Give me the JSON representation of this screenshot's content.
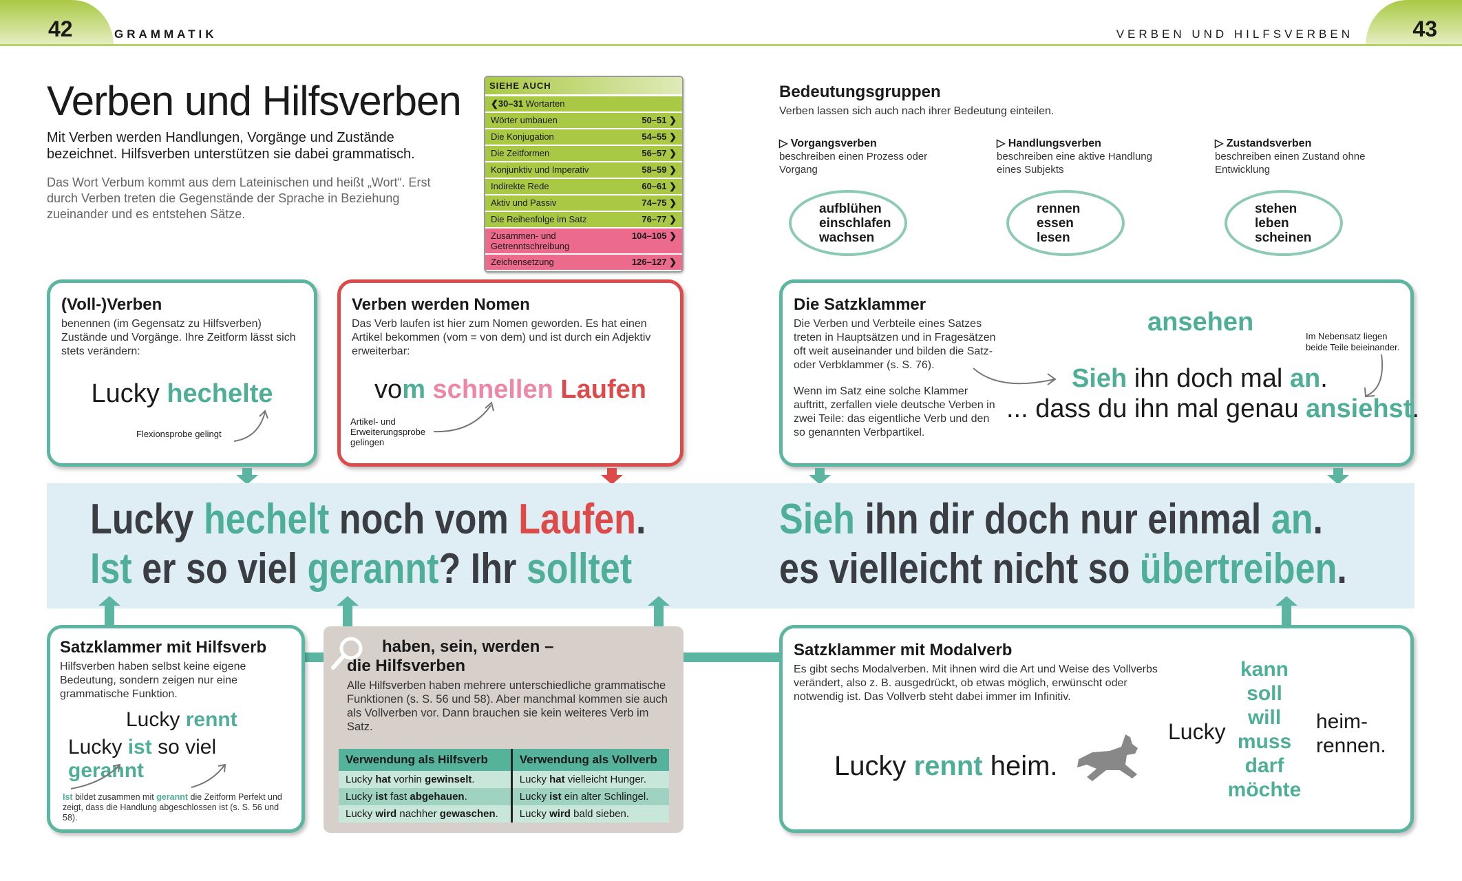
{
  "header": {
    "left_page": "42",
    "left_section": "GRAMMATIK",
    "right_section": "VERBEN UND HILFSVERBEN",
    "right_page": "43"
  },
  "intro": {
    "title": "Verben und Hilfsverben",
    "lead": "Mit Verben werden Handlungen, Vorgänge und Zustände bezeichnet. Hilfsverben unterstützen sie dabei grammatisch.",
    "note": "Das Wort Verbum kommt aus dem Lateinischen und heißt „Wort“. Erst durch Verben treten die Gegenstände der Sprache in Beziehung zueinander und es entstehen Sätze."
  },
  "see_also": {
    "heading": "SIEHE AUCH",
    "back": {
      "pages": "❮30–31",
      "label": "Wortarten"
    },
    "items": [
      {
        "label": "Wörter umbauen",
        "pages": "50–51 ❯",
        "pink": false
      },
      {
        "label": "Die Konjugation",
        "pages": "54–55 ❯",
        "pink": false
      },
      {
        "label": "Die Zeitformen",
        "pages": "56–57 ❯",
        "pink": false
      },
      {
        "label": "Konjunktiv und Imperativ",
        "pages": "58–59 ❯",
        "pink": false
      },
      {
        "label": "Indirekte Rede",
        "pages": "60–61 ❯",
        "pink": false
      },
      {
        "label": "Aktiv und Passiv",
        "pages": "74–75 ❯",
        "pink": false
      },
      {
        "label": "Die Reihenfolge im Satz",
        "pages": "76–77 ❯",
        "pink": false
      },
      {
        "label": "Zusammen- und Getrenntschreibung",
        "pages": "104–105 ❯",
        "pink": true
      },
      {
        "label": "Zeichensetzung",
        "pages": "126–127 ❯",
        "pink": true
      }
    ]
  },
  "meaning": {
    "title": "Bedeutungsgruppen",
    "subtitle": "Verben lassen sich auch nach ihrer Bedeutung einteilen.",
    "groups": [
      {
        "name": "▷ Vorgangsverben",
        "desc": "beschreiben einen Prozess oder Vorgang",
        "words": [
          "aufblühen",
          "einschlafen",
          "wachsen"
        ]
      },
      {
        "name": "▷ Handlungsverben",
        "desc": "beschreiben eine aktive Handlung eines Subjekts",
        "words": [
          "rennen",
          "essen",
          "lesen"
        ]
      },
      {
        "name": "▷ Zustandsverben",
        "desc": "beschreiben einen Zustand ohne Entwicklung",
        "words": [
          "stehen",
          "leben",
          "scheinen"
        ]
      }
    ]
  },
  "full_verbs": {
    "title": "(Voll-)Verben",
    "text": "benennen (im Gegensatz zu Hilfsverben) Zustände und Vorgänge. Ihre Zeitform lässt sich stets verändern:",
    "example": [
      {
        "t": "Lucky ",
        "c": ""
      },
      {
        "t": "hechelte",
        "c": "teal b"
      }
    ],
    "annotation": "Flexionsprobe gelingt"
  },
  "nominal": {
    "title": "Verben werden Nomen",
    "text": "Das Verb laufen ist hier zum Nomen geworden. Es hat einen Artikel bekommen (vom = von dem) und ist durch ein Adjektiv erweiterbar:",
    "example": [
      {
        "t": "vo",
        "c": ""
      },
      {
        "t": "m ",
        "c": "teal b"
      },
      {
        "t": "schnellen ",
        "c": "pink b"
      },
      {
        "t": "Laufen",
        "c": "red b"
      }
    ],
    "annotation": "Artikel- und Erweiterungsprobe gelingen"
  },
  "bracket": {
    "title": "Die Satzklammer",
    "text1": "Die Verben und Verbteile eines Satzes treten in Hauptsätzen und in Fragesätzen oft weit auseinander und bilden die Satz- oder Verbklammer (s. S. 76).",
    "text2": "Wenn im Satz eine solche Klammer auftritt, zerfallen viele deutsche Verben in zwei Teile: das eigentliche Verb und den so genannten Verbpartikel.",
    "infinitive": "ansehen",
    "note": "Im Nebensatz liegen beide Teile beieinander.",
    "line1": [
      {
        "t": "Sieh",
        "c": "teal b"
      },
      {
        "t": " ihn doch mal ",
        "c": ""
      },
      {
        "t": "an",
        "c": "teal b"
      },
      {
        "t": ".",
        "c": ""
      }
    ],
    "line2": [
      {
        "t": "... dass du ihn mal genau ",
        "c": ""
      },
      {
        "t": "ansiehst",
        "c": "teal b"
      },
      {
        "t": ".",
        "c": ""
      }
    ]
  },
  "band": {
    "left1": [
      {
        "t": "Lucky ",
        "c": "dark"
      },
      {
        "t": "hechelt",
        "c": "teal"
      },
      {
        "t": " noch vom ",
        "c": "dark"
      },
      {
        "t": "Laufen",
        "c": "red"
      },
      {
        "t": ".",
        "c": "dark"
      }
    ],
    "left2": [
      {
        "t": "Ist",
        "c": "teal"
      },
      {
        "t": " er so viel ",
        "c": "dark"
      },
      {
        "t": "gerannt",
        "c": "teal"
      },
      {
        "t": "? Ihr ",
        "c": "dark"
      },
      {
        "t": "solltet",
        "c": "teal"
      }
    ],
    "right1": [
      {
        "t": "Sieh",
        "c": "teal"
      },
      {
        "t": " ihn dir doch nur einmal ",
        "c": "dark"
      },
      {
        "t": "an",
        "c": "teal"
      },
      {
        "t": ".",
        "c": "dark"
      }
    ],
    "right2": [
      {
        "t": "es vielleicht nicht so ",
        "c": "dark"
      },
      {
        "t": "übertreiben",
        "c": "teal"
      },
      {
        "t": ".",
        "c": "dark"
      }
    ]
  },
  "aux_bracket": {
    "title": "Satzklammer mit Hilfsverb",
    "text": "Hilfsverben haben selbst keine eigene Bedeutung, sondern zeigen nur eine grammatische Funktion.",
    "ex1": [
      {
        "t": "Lucky ",
        "c": ""
      },
      {
        "t": "rennt",
        "c": "teal b"
      }
    ],
    "ex2": [
      {
        "t": "Lucky ",
        "c": ""
      },
      {
        "t": "ist",
        "c": "teal b"
      },
      {
        "t": " so viel ",
        "c": ""
      },
      {
        "t": "gerannt",
        "c": "teal b"
      }
    ],
    "note": [
      {
        "t": "Ist",
        "c": "teal b"
      },
      {
        "t": " bildet zusammen mit ",
        "c": ""
      },
      {
        "t": "gerannt",
        "c": "teal b"
      },
      {
        "t": " die Zeitform Perfekt und zeigt, dass die Handlung abgeschlossen ist (s. S. 56 und 58).",
        "c": ""
      }
    ]
  },
  "aux": {
    "title_line1": "haben, sein, werden –",
    "title_line2": "die Hilfsverben",
    "text": "Alle Hilfsverben haben mehrere unterschiedliche grammatische Funktionen (s. S. 56 und 58). Aber manchmal kommen sie auch als Vollverben vor. Dann brauchen sie kein weiteres Verb im Satz.",
    "col1": "Verwendung als Hilfsverb",
    "col2": "Verwendung als Vollverb",
    "rows": [
      [
        [
          {
            "t": "Lucky ",
            "c": ""
          },
          {
            "t": "hat",
            "c": "b"
          },
          {
            "t": " vorhin ",
            "c": ""
          },
          {
            "t": "gewinselt",
            "c": "b"
          },
          {
            "t": ".",
            "c": ""
          }
        ],
        [
          {
            "t": "Lucky ",
            "c": ""
          },
          {
            "t": "hat",
            "c": "b"
          },
          {
            "t": " vielleicht Hunger.",
            "c": ""
          }
        ]
      ],
      [
        [
          {
            "t": "Lucky ",
            "c": ""
          },
          {
            "t": "ist",
            "c": "b"
          },
          {
            "t": " fast ",
            "c": ""
          },
          {
            "t": "abgehauen",
            "c": "b"
          },
          {
            "t": ".",
            "c": ""
          }
        ],
        [
          {
            "t": "Lucky ",
            "c": ""
          },
          {
            "t": "ist",
            "c": "b"
          },
          {
            "t": " ein alter Schlingel.",
            "c": ""
          }
        ]
      ],
      [
        [
          {
            "t": "Lucky ",
            "c": ""
          },
          {
            "t": "wird",
            "c": "b"
          },
          {
            "t": " nachher ",
            "c": ""
          },
          {
            "t": "gewaschen",
            "c": "b"
          },
          {
            "t": ".",
            "c": ""
          }
        ],
        [
          {
            "t": "Lucky ",
            "c": ""
          },
          {
            "t": "wird",
            "c": "b"
          },
          {
            "t": " bald sieben.",
            "c": ""
          }
        ]
      ]
    ]
  },
  "modal": {
    "title": "Satzklammer mit Modalverb",
    "text": "Es gibt sechs Modalverben. Mit ihnen wird die Art und Weise des Vollverbs verändert, also z. B. ausgedrückt, ob etwas möglich, erwünscht oder notwendig ist. Das Vollverb steht dabei immer im Infinitiv.",
    "example": [
      {
        "t": "Lucky ",
        "c": ""
      },
      {
        "t": "rennt",
        "c": "teal b"
      },
      {
        "t": " heim.",
        "c": ""
      }
    ],
    "subject": "Lucky",
    "verbs": [
      "kann",
      "soll",
      "will",
      "muss",
      "darf",
      "möchte"
    ],
    "rest1": "heim-",
    "rest2": "rennen."
  },
  "colors": {
    "teal": "#5bb5a0",
    "red": "#dc4a4a",
    "pink": "#ee86a6",
    "green": "#a9c944",
    "band": "#dfeef4",
    "grey_box": "#d6cfca"
  }
}
